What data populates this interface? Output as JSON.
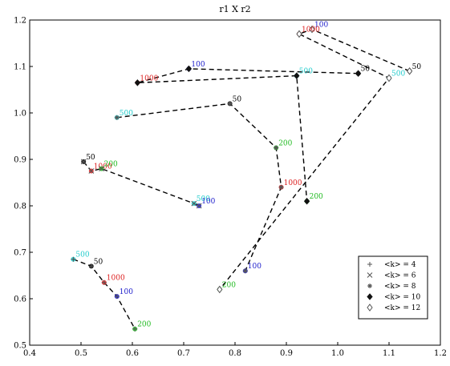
{
  "chart_data": {
    "type": "scatter",
    "title": "r1 X r2",
    "xlabel": "",
    "ylabel": "",
    "xlim": [
      0.4,
      1.2
    ],
    "ylim": [
      0.5,
      1.2
    ],
    "xticks": [
      "0.4",
      "0.5",
      "0.6",
      "0.7",
      "0.8",
      "0.9",
      "1.0",
      "1.1",
      "1.2"
    ],
    "yticks": [
      "0.5",
      "0.6",
      "0.7",
      "0.8",
      "0.9",
      "1.0",
      "1.1",
      "1.2"
    ],
    "grid": false,
    "legend_position": "bottom-right",
    "legend": [
      {
        "label": "<k> = 4",
        "marker": "plus"
      },
      {
        "label": "<k> = 6",
        "marker": "x"
      },
      {
        "label": "<k> = 8",
        "marker": "star"
      },
      {
        "label": "<k> = 10",
        "marker": "diamond-filled"
      },
      {
        "label": "<k> = 12",
        "marker": "diamond-open"
      }
    ],
    "label_colors": {
      "50": "#000000",
      "100": "#2020cc",
      "200": "#22bb22",
      "500": "#22cccc",
      "1000": "#dd2222"
    },
    "paths": [
      {
        "points": [
          {
            "label": "50",
            "x": 1.04,
            "y": 1.085,
            "marker": "diamond-filled"
          },
          {
            "label": "100",
            "x": 0.71,
            "y": 1.095,
            "marker": "diamond-filled"
          },
          {
            "label": "1000",
            "x": 0.61,
            "y": 1.065,
            "marker": "diamond-filled"
          },
          {
            "label": "500",
            "x": 0.92,
            "y": 1.08,
            "marker": "diamond-filled"
          },
          {
            "label": "200",
            "x": 0.94,
            "y": 0.81,
            "marker": "diamond-filled"
          }
        ]
      },
      {
        "points": [
          {
            "label": "50",
            "x": 1.14,
            "y": 1.09,
            "marker": "diamond-open"
          },
          {
            "label": "100",
            "x": 0.95,
            "y": 1.18,
            "marker": "diamond-open"
          },
          {
            "label": "1000",
            "x": 0.925,
            "y": 1.17,
            "marker": "diamond-open"
          },
          {
            "label": "500",
            "x": 1.1,
            "y": 1.075,
            "marker": "diamond-open"
          },
          {
            "label": "200",
            "x": 0.77,
            "y": 0.62,
            "marker": "diamond-open"
          }
        ]
      },
      {
        "points": [
          {
            "label": "500",
            "x": 0.57,
            "y": 0.99,
            "marker": "star"
          },
          {
            "label": "50",
            "x": 0.79,
            "y": 1.02,
            "marker": "star"
          },
          {
            "label": "200",
            "x": 0.88,
            "y": 0.925,
            "marker": "star"
          },
          {
            "label": "1000",
            "x": 0.89,
            "y": 0.84,
            "marker": "star"
          },
          {
            "label": "100",
            "x": 0.82,
            "y": 0.66,
            "marker": "star"
          }
        ]
      },
      {
        "points": [
          {
            "label": "50",
            "x": 0.505,
            "y": 0.895,
            "marker": "x"
          },
          {
            "label": "1000",
            "x": 0.52,
            "y": 0.875,
            "marker": "x"
          },
          {
            "label": "200",
            "x": 0.54,
            "y": 0.88,
            "marker": "x"
          },
          {
            "label": "500",
            "x": 0.72,
            "y": 0.805,
            "marker": "x"
          },
          {
            "label": "100",
            "x": 0.73,
            "y": 0.8,
            "marker": "x"
          }
        ]
      },
      {
        "points": [
          {
            "label": "500",
            "x": 0.485,
            "y": 0.685,
            "marker": "plus"
          },
          {
            "label": "50",
            "x": 0.52,
            "y": 0.67,
            "marker": "plus"
          },
          {
            "label": "1000",
            "x": 0.545,
            "y": 0.635,
            "marker": "plus"
          },
          {
            "label": "100",
            "x": 0.57,
            "y": 0.605,
            "marker": "plus"
          },
          {
            "label": "200",
            "x": 0.605,
            "y": 0.535,
            "marker": "plus"
          }
        ]
      }
    ]
  }
}
